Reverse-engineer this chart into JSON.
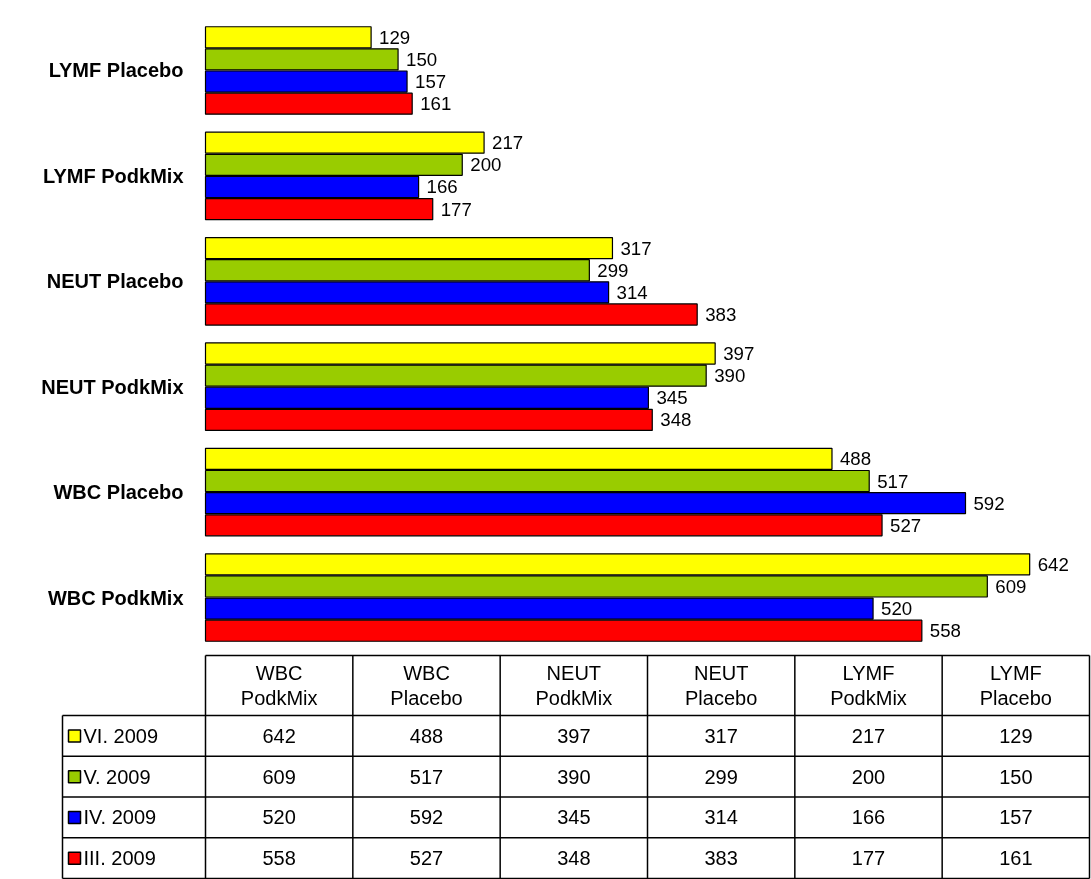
{
  "chart_data": {
    "type": "bar",
    "orientation": "horizontal",
    "categories": [
      "LYMF Placebo",
      "LYMF PodkMix",
      "NEUT Placebo",
      "NEUT PodkMix",
      "WBC Placebo",
      "WBC PodkMix"
    ],
    "series": [
      {
        "name": "VI. 2009",
        "color": "#ffff00",
        "values": [
          129,
          217,
          317,
          397,
          488,
          642
        ]
      },
      {
        "name": "V. 2009",
        "color": "#99cc00",
        "values": [
          150,
          200,
          299,
          390,
          517,
          609
        ]
      },
      {
        "name": "IV. 2009",
        "color": "#0000ff",
        "values": [
          157,
          166,
          314,
          345,
          592,
          520
        ]
      },
      {
        "name": "III. 2009",
        "color": "#ff0000",
        "values": [
          161,
          177,
          383,
          348,
          527,
          558
        ]
      }
    ],
    "annotations": [
      "642",
      "488",
      "397",
      "317",
      "217",
      "129",
      "609",
      "517",
      "390",
      "299",
      "200",
      "150",
      "520",
      "592",
      "345",
      "314",
      "166",
      "157",
      "558",
      "527",
      "348",
      "383",
      "177",
      "161"
    ],
    "data_labels": true,
    "grid": false,
    "legend": "bottom"
  }
}
